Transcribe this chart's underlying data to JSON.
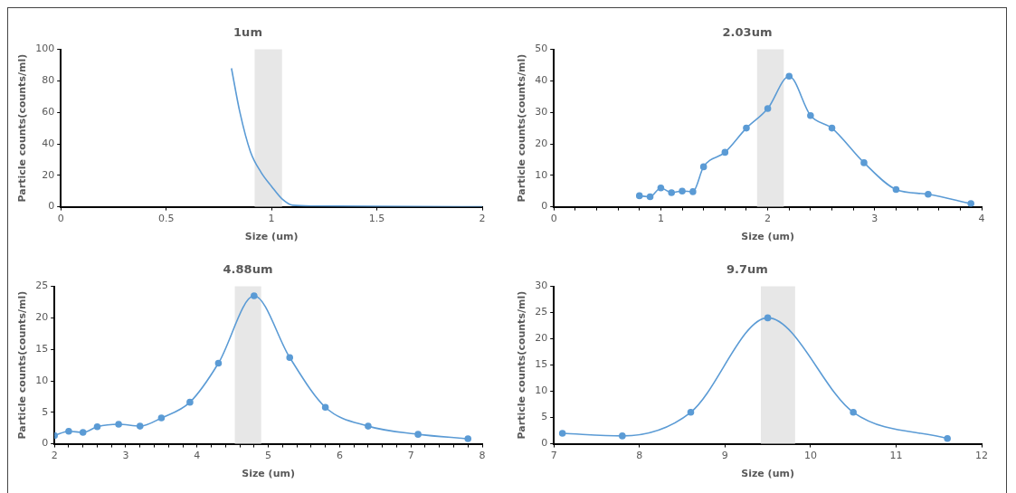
{
  "chart_data": [
    {
      "type": "line",
      "title": "1um",
      "xlabel": "Size (um)",
      "ylabel": "Particle counts(counts/ml)",
      "marker": "none",
      "grid": false,
      "legend": false,
      "series": [
        {
          "color": "#5b9bd5",
          "x": [
            0.81,
            0.85,
            0.9,
            0.95,
            1.0,
            1.05,
            1.1,
            1.2,
            1.5,
            2.0
          ],
          "values": [
            88,
            60,
            35,
            22,
            13,
            5,
            1,
            0.5,
            0.3,
            0
          ]
        }
      ],
      "xlim": [
        0,
        2
      ],
      "xticks": [
        0,
        0.5,
        1,
        1.5,
        2
      ],
      "ylim": [
        0,
        100
      ],
      "yticks": [
        0,
        20,
        40,
        60,
        80,
        100
      ],
      "bands": [
        {
          "axis": "x",
          "from": 0.92,
          "to": 1.05,
          "color": "#e7e7e7"
        }
      ]
    },
    {
      "type": "line",
      "title": "2.03um",
      "xlabel": "Size (um)",
      "ylabel": "Particle counts(counts/ml)",
      "marker": "circle",
      "grid": false,
      "legend": false,
      "series": [
        {
          "color": "#5b9bd5",
          "x": [
            0.8,
            0.9,
            1.0,
            1.1,
            1.2,
            1.3,
            1.4,
            1.6,
            1.8,
            2.0,
            2.2,
            2.4,
            2.6,
            2.9,
            3.2,
            3.5,
            3.9
          ],
          "values": [
            3.5,
            3.2,
            6,
            4.5,
            5,
            4.8,
            12.7,
            17.3,
            25,
            31.2,
            41.5,
            29,
            25,
            14,
            5.5,
            4,
            1
          ]
        }
      ],
      "xlim": [
        0,
        4
      ],
      "xticks": [
        0,
        {
          "value": 0.2,
          "label": null
        },
        {
          "value": 0.4,
          "label": null
        },
        {
          "value": 0.6,
          "label": null
        },
        {
          "value": 0.8,
          "label": null
        },
        1,
        {
          "value": 1.2,
          "label": null
        },
        {
          "value": 1.4,
          "label": null
        },
        {
          "value": 1.6,
          "label": null
        },
        {
          "value": 1.8,
          "label": null
        },
        2,
        {
          "value": 2.2,
          "label": null
        },
        {
          "value": 2.4,
          "label": null
        },
        {
          "value": 2.6,
          "label": null
        },
        {
          "value": 2.8,
          "label": null
        },
        3,
        {
          "value": 3.2,
          "label": null
        },
        {
          "value": 3.4,
          "label": null
        },
        {
          "value": 3.6,
          "label": null
        },
        {
          "value": 3.8,
          "label": null
        },
        4
      ],
      "ylim": [
        0,
        50
      ],
      "yticks": [
        0,
        10,
        20,
        30,
        40,
        50
      ],
      "bands": [
        {
          "axis": "x",
          "from": 1.9,
          "to": 2.15,
          "color": "#e7e7e7"
        }
      ]
    },
    {
      "type": "line",
      "title": "4.88um",
      "xlabel": "Size (um)",
      "ylabel": "Particle counts(counts/ml)",
      "marker": "circle",
      "grid": false,
      "legend": false,
      "series": [
        {
          "color": "#5b9bd5",
          "x": [
            2.0,
            2.2,
            2.4,
            2.6,
            2.9,
            3.2,
            3.5,
            3.9,
            4.3,
            4.8,
            5.3,
            5.8,
            6.4,
            7.1,
            7.8
          ],
          "values": [
            1.3,
            2,
            1.8,
            2.7,
            3.1,
            2.8,
            4.1,
            6.6,
            12.8,
            23.5,
            13.7,
            5.8,
            2.8,
            1.5,
            0.8
          ]
        }
      ],
      "xlim": [
        2,
        8
      ],
      "xticks": [
        2,
        {
          "value": 2.2,
          "label": null
        },
        {
          "value": 2.4,
          "label": null
        },
        {
          "value": 2.6,
          "label": null
        },
        {
          "value": 2.8,
          "label": null
        },
        3,
        {
          "value": 3.2,
          "label": null
        },
        {
          "value": 3.4,
          "label": null
        },
        {
          "value": 3.6,
          "label": null
        },
        {
          "value": 3.8,
          "label": null
        },
        4,
        {
          "value": 4.2,
          "label": null
        },
        {
          "value": 4.4,
          "label": null
        },
        {
          "value": 4.6,
          "label": null
        },
        {
          "value": 4.8,
          "label": null
        },
        5,
        {
          "value": 5.2,
          "label": null
        },
        {
          "value": 5.4,
          "label": null
        },
        {
          "value": 5.6,
          "label": null
        },
        {
          "value": 5.8,
          "label": null
        },
        6,
        {
          "value": 6.2,
          "label": null
        },
        {
          "value": 6.4,
          "label": null
        },
        {
          "value": 6.6,
          "label": null
        },
        {
          "value": 6.8,
          "label": null
        },
        7,
        {
          "value": 7.2,
          "label": null
        },
        {
          "value": 7.4,
          "label": null
        },
        {
          "value": 7.6,
          "label": null
        },
        {
          "value": 7.8,
          "label": null
        },
        8
      ],
      "ylim": [
        0,
        25
      ],
      "yticks": [
        0,
        5,
        10,
        15,
        20,
        25
      ],
      "bands": [
        {
          "axis": "x",
          "from": 4.53,
          "to": 4.9,
          "color": "#e7e7e7"
        }
      ]
    },
    {
      "type": "line",
      "title": "9.7um",
      "xlabel": "Size (um)",
      "ylabel": "Particle counts(counts/ml)",
      "marker": "circle",
      "grid": false,
      "legend": false,
      "series": [
        {
          "color": "#5b9bd5",
          "x": [
            7.1,
            7.8,
            8.6,
            9.5,
            10.5,
            11.6
          ],
          "values": [
            2,
            1.5,
            6,
            24,
            6,
            1
          ]
        }
      ],
      "xlim": [
        7,
        12
      ],
      "xticks": [
        7,
        8,
        9,
        10,
        11,
        12
      ],
      "ylim": [
        0,
        30
      ],
      "yticks": [
        0,
        5,
        10,
        15,
        20,
        25,
        30
      ],
      "bands": [
        {
          "axis": "x",
          "from": 9.42,
          "to": 9.82,
          "color": "#e7e7e7"
        }
      ]
    }
  ]
}
